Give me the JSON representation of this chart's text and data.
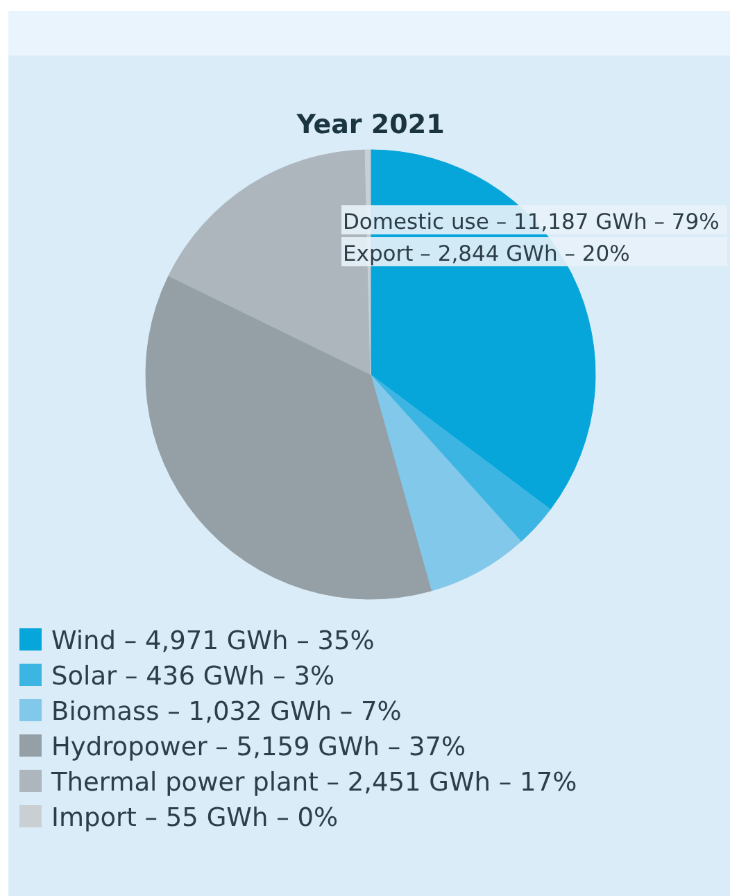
{
  "chart_data": {
    "type": "pie",
    "title": "Year 2021",
    "categories": [
      "Wind – 4,971 GWh – 35%",
      "Solar – 436 GWh – 3%",
      "Biomass – 1,032 GWh – 7%",
      "Hydropower – 5,159 GWh – 37%",
      "Thermal power plant – 2,451 GWh – 17%",
      "Import – 55 GWh – 0%"
    ],
    "values": [
      35.24,
      3.09,
      7.32,
      36.58,
      17.38,
      0.39
    ],
    "colors": [
      "#06a5da",
      "#3cb5e2",
      "#82c8ea",
      "#959fa6",
      "#adb6bd",
      "#c9cfd3"
    ],
    "annotations": [
      "Domestic use – 11,187 GWh – 79%",
      "Export – 2,844 GWh – 20%"
    ],
    "legend": "bottom left"
  }
}
